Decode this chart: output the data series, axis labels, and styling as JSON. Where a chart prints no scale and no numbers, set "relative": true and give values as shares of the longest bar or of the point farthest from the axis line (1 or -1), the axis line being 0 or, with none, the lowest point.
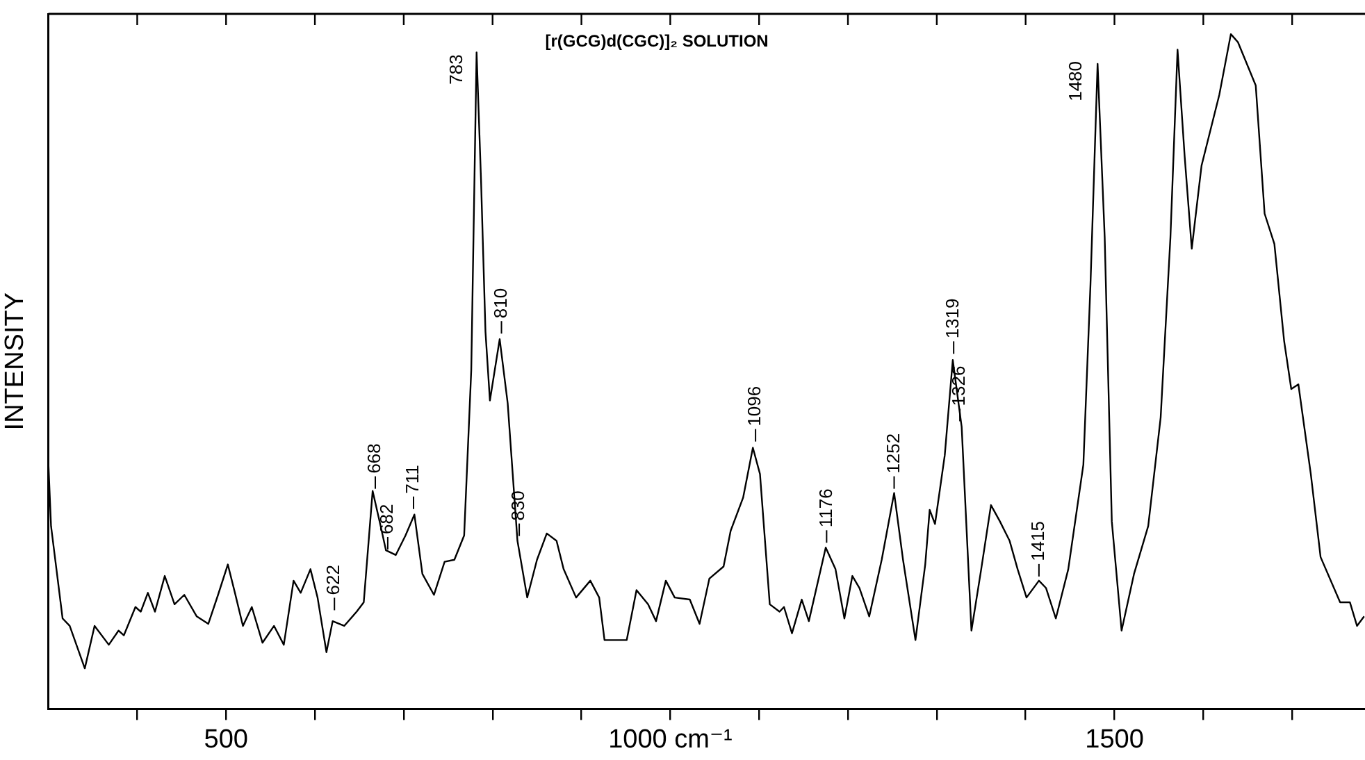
{
  "chart_data": {
    "type": "line",
    "title": "[r(GCG)d(CGC)]₂ SOLUTION",
    "ylabel": "INTENSITY",
    "relative": true,
    "xlim": [
      300,
      1782
    ],
    "xticks": [
      {
        "value": 400,
        "label": null
      },
      500,
      {
        "value": 600,
        "label": null
      },
      {
        "value": 700,
        "label": null
      },
      {
        "value": 800,
        "label": null
      },
      {
        "value": 900,
        "label": null
      },
      {
        "value": 1000,
        "label": "1000 cm⁻¹"
      },
      {
        "value": 1100,
        "label": null
      },
      {
        "value": 1200,
        "label": null
      },
      {
        "value": 1300,
        "label": null
      },
      {
        "value": 1400,
        "label": null
      },
      1500,
      {
        "value": 1600,
        "label": null
      },
      {
        "value": 1700,
        "label": null
      }
    ],
    "grid": false,
    "legend": false,
    "marker": "none",
    "line_style": "solid",
    "series": [
      {
        "color": "#000000",
        "x": [
          300,
          303,
          316,
          324,
          341,
          352,
          368,
          379,
          385,
          398,
          404,
          412,
          420,
          431,
          442,
          453,
          467,
          480,
          491,
          502,
          510,
          519,
          529,
          541,
          554,
          565,
          576,
          584,
          595,
          603,
          613,
          620,
          633,
          647,
          655,
          665,
          674,
          680,
          691,
          702,
          712,
          721,
          734,
          746,
          757,
          768,
          776,
          782,
          787,
          792,
          797,
          808,
          817,
          828,
          839,
          850,
          861,
          872,
          880,
          894,
          910,
          920,
          926,
          951,
          962,
          975,
          984,
          995,
          1005,
          1022,
          1033,
          1044,
          1060,
          1068,
          1082,
          1093,
          1101,
          1112,
          1123,
          1128,
          1137,
          1148,
          1156,
          1175,
          1186,
          1196,
          1205,
          1213,
          1224,
          1238,
          1252,
          1262,
          1276,
          1287,
          1292,
          1298,
          1309,
          1318,
          1328,
          1339,
          1350,
          1361,
          1371,
          1382,
          1391,
          1401,
          1415,
          1423,
          1434,
          1448,
          1465,
          1473,
          1481,
          1489,
          1497,
          1508,
          1522,
          1538,
          1552,
          1563,
          1571,
          1579,
          1587,
          1598,
          1618,
          1631,
          1639,
          1659,
          1669,
          1680,
          1691,
          1699,
          1707,
          1721,
          1732,
          1754,
          1765,
          1773,
          1781
        ],
        "values": [
          0.365,
          0.271,
          0.134,
          0.123,
          0.06,
          0.123,
          0.095,
          0.116,
          0.109,
          0.151,
          0.144,
          0.172,
          0.144,
          0.197,
          0.155,
          0.169,
          0.137,
          0.126,
          0.169,
          0.214,
          0.172,
          0.123,
          0.151,
          0.098,
          0.123,
          0.095,
          0.19,
          0.172,
          0.207,
          0.165,
          0.084,
          0.13,
          0.123,
          0.144,
          0.158,
          0.323,
          0.271,
          0.235,
          0.228,
          0.257,
          0.288,
          0.2,
          0.169,
          0.218,
          0.221,
          0.257,
          0.502,
          0.973,
          0.784,
          0.559,
          0.457,
          0.548,
          0.453,
          0.249,
          0.165,
          0.221,
          0.26,
          0.249,
          0.207,
          0.165,
          0.19,
          0.165,
          0.102,
          0.102,
          0.176,
          0.155,
          0.13,
          0.19,
          0.165,
          0.162,
          0.126,
          0.193,
          0.211,
          0.264,
          0.313,
          0.387,
          0.348,
          0.155,
          0.144,
          0.151,
          0.112,
          0.162,
          0.13,
          0.239,
          0.207,
          0.134,
          0.197,
          0.179,
          0.137,
          0.221,
          0.32,
          0.221,
          0.102,
          0.214,
          0.295,
          0.274,
          0.376,
          0.517,
          0.418,
          0.116,
          0.207,
          0.302,
          0.278,
          0.249,
          0.207,
          0.165,
          0.19,
          0.179,
          0.134,
          0.207,
          0.362,
          0.629,
          0.956,
          0.699,
          0.278,
          0.116,
          0.2,
          0.271,
          0.432,
          0.699,
          0.977,
          0.819,
          0.682,
          0.805,
          0.91,
          1,
          0.988,
          0.924,
          0.734,
          0.689,
          0.545,
          0.474,
          0.481,
          0.348,
          0.225,
          0.158,
          0.158,
          0.123,
          0.137
        ]
      }
    ],
    "annotations": [
      {
        "text": "622",
        "x": 622,
        "y": 0.14
      },
      {
        "text": "668",
        "x": 668,
        "y": 0.32
      },
      {
        "text": "682",
        "x": 682,
        "y": 0.23
      },
      {
        "text": "711",
        "x": 711,
        "y": 0.29
      },
      {
        "text": "783",
        "x": 783,
        "y": 0.97
      },
      {
        "text": "810",
        "x": 810,
        "y": 0.55
      },
      {
        "text": "830",
        "x": 830,
        "y": 0.25
      },
      {
        "text": "1096",
        "x": 1096,
        "y": 0.39
      },
      {
        "text": "1176",
        "x": 1176,
        "y": 0.24
      },
      {
        "text": "1252",
        "x": 1252,
        "y": 0.32
      },
      {
        "text": "1319",
        "x": 1319,
        "y": 0.52
      },
      {
        "text": "1326",
        "x": 1326,
        "y": 0.42
      },
      {
        "text": "1415",
        "x": 1415,
        "y": 0.19
      },
      {
        "text": "1480",
        "x": 1480,
        "y": 0.96
      }
    ]
  }
}
